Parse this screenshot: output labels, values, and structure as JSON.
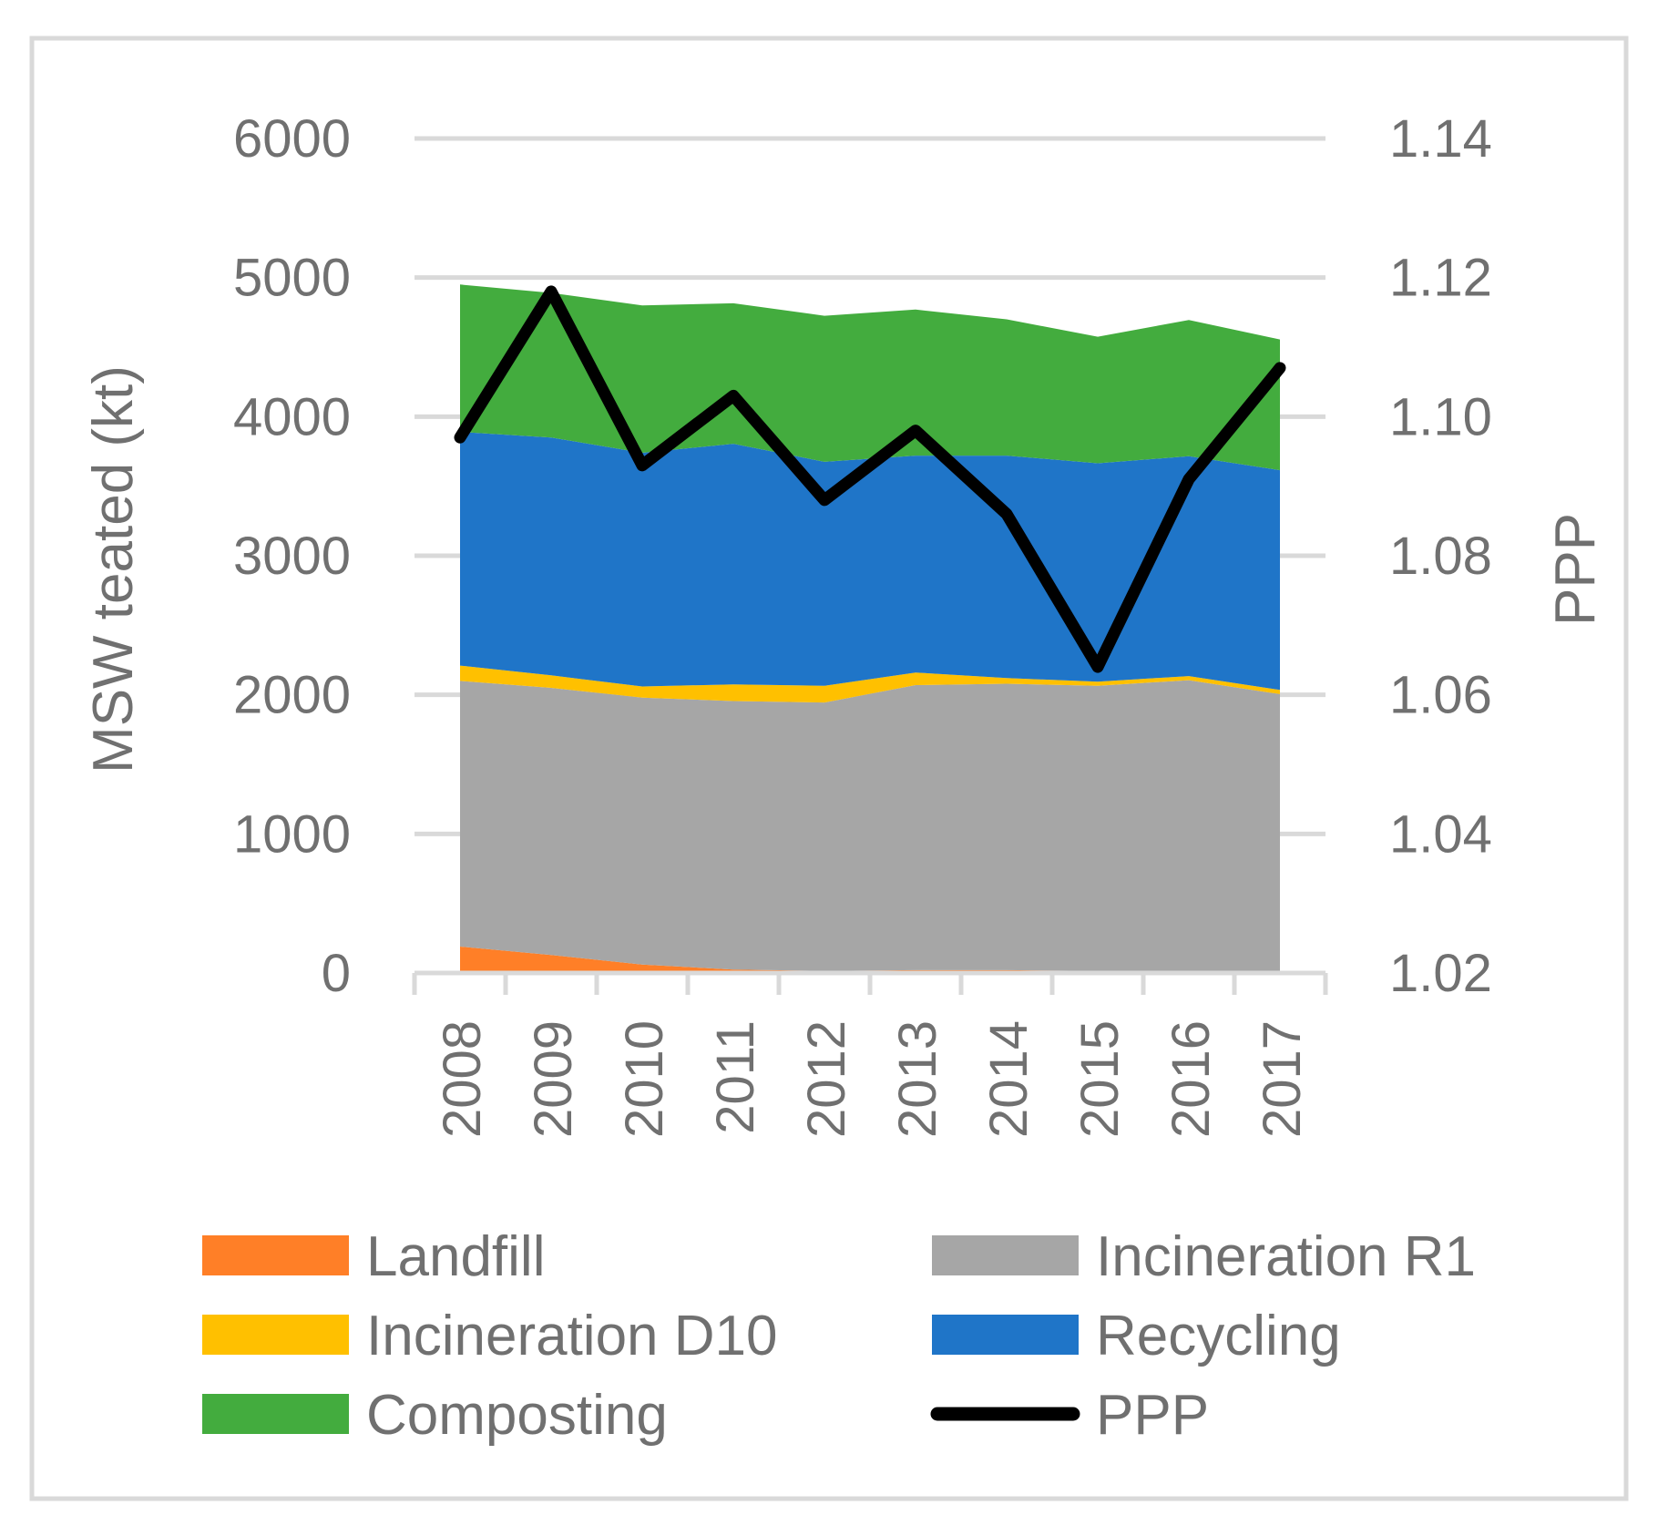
{
  "chart_data": {
    "type": "area",
    "title": "",
    "ylabel": "MSW teated (kt)",
    "y2label": "PPP",
    "ylim": [
      0,
      6000
    ],
    "y2lim": [
      1.02,
      1.14
    ],
    "yticks": [
      "0",
      "1000",
      "2000",
      "3000",
      "4000",
      "5000",
      "6000"
    ],
    "y2ticks": [
      "1.02",
      "1.04",
      "1.06",
      "1.08",
      "1.10",
      "1.12",
      "1.14"
    ],
    "categories": [
      "2008",
      "2009",
      "2010",
      "2011",
      "2012",
      "2013",
      "2014",
      "2015",
      "2016",
      "2017"
    ],
    "series": [
      {
        "name": "Landfill",
        "color": "#FF7F27",
        "values": [
          190,
          130,
          60,
          25,
          15,
          20,
          20,
          15,
          15,
          15
        ]
      },
      {
        "name": "Incineration R1",
        "color": "#A6A6A6",
        "values": [
          1910,
          1920,
          1920,
          1930,
          1930,
          2050,
          2060,
          2050,
          2090,
          1990
        ]
      },
      {
        "name": "Incineration D10",
        "color": "#FFC000",
        "values": [
          110,
          90,
          80,
          120,
          120,
          90,
          40,
          30,
          30,
          30
        ]
      },
      {
        "name": "Recycling",
        "color": "#1F75C8",
        "values": [
          1680,
          1710,
          1680,
          1730,
          1610,
          1560,
          1600,
          1570,
          1580,
          1580
        ]
      },
      {
        "name": "Composting",
        "color": "#43AC3E",
        "values": [
          1060,
          1040,
          1060,
          1010,
          1050,
          1050,
          980,
          910,
          980,
          940
        ]
      }
    ],
    "line_series": {
      "name": "PPP",
      "color": "#000000",
      "axis": "right",
      "values": [
        1.097,
        1.118,
        1.093,
        1.103,
        1.088,
        1.098,
        1.086,
        1.064,
        1.091,
        1.107
      ]
    },
    "legend": [
      {
        "name": "Landfill",
        "color": "#FF7F27",
        "kind": "box"
      },
      {
        "name": "Incineration R1",
        "color": "#A6A6A6",
        "kind": "box"
      },
      {
        "name": "Incineration D10",
        "color": "#FFC000",
        "kind": "box"
      },
      {
        "name": "Recycling",
        "color": "#1F75C8",
        "kind": "box"
      },
      {
        "name": "Composting",
        "color": "#43AC3E",
        "kind": "box"
      },
      {
        "name": "PPP",
        "color": "#000000",
        "kind": "line"
      }
    ],
    "legend_position": "bottom",
    "grid": true
  }
}
